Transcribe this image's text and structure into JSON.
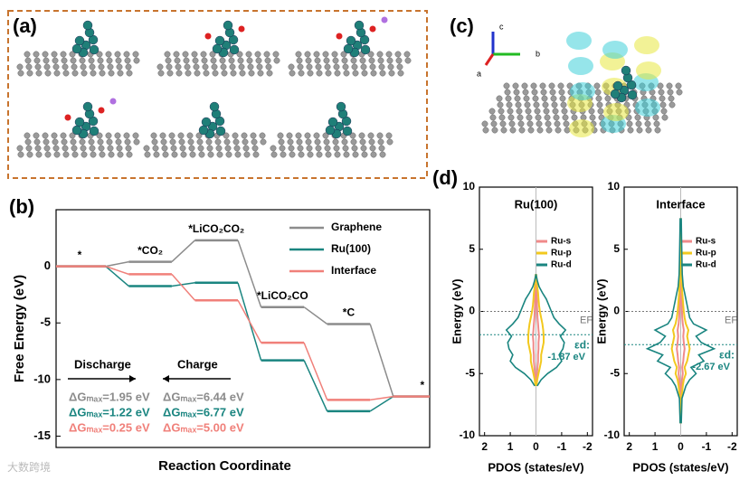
{
  "panel_labels": [
    "(a)",
    "(b)",
    "(c)",
    "(d)"
  ],
  "crystal_axes": [
    "c",
    "b",
    "a"
  ],
  "watermark": "大数跨境",
  "chart_data": [
    {
      "type": "energy_profile",
      "ylabel": "Free Energy (eV)",
      "xlabel": "Reaction Coordinate",
      "categories": [
        "*",
        "*CO₂",
        "*LiCO₂CO₂",
        "*LiCO₂CO",
        "*C",
        "*"
      ],
      "series": [
        {
          "name": "Graphene",
          "color": "#8c8c8c",
          "values": [
            0,
            0.4,
            2.3,
            -3.6,
            -5.1,
            -11.5
          ]
        },
        {
          "name": "Ru(100)",
          "color": "#1a8580",
          "values": [
            0,
            -1.75,
            -1.45,
            -8.3,
            -12.8,
            -11.5
          ]
        },
        {
          "name": "Interface",
          "color": "#f0807a",
          "values": [
            0,
            -0.7,
            -3.0,
            -6.75,
            -11.8,
            -11.5
          ]
        }
      ],
      "ylim": [
        -16,
        5
      ],
      "yticks": [
        0,
        -5,
        -10,
        -15
      ],
      "annotations": {
        "discharge": "Discharge",
        "charge": "Charge",
        "discharge_dg": [
          "ΔGₘₐₓ=1.95 eV",
          "ΔGₘₐₓ=1.22 eV",
          "ΔGₘₐₓ=0.25 eV"
        ],
        "charge_dg": [
          "ΔGₘₐₓ=6.44 eV",
          "ΔGₘₐₓ=6.77 eV",
          "ΔGₘₐₓ=5.00 eV"
        ]
      }
    },
    {
      "type": "pdos",
      "title": "Ru(100)",
      "xlabel": "PDOS (states/eV)",
      "ylabel": "Energy (eV)",
      "energy": [
        -6,
        -5.5,
        -5,
        -4.5,
        -4,
        -3.5,
        -3,
        -2.5,
        -2,
        -1.5,
        -1,
        -0.5,
        0,
        0.5,
        1,
        1.5,
        2,
        2.5,
        3
      ],
      "series": [
        {
          "name": "Ru-s",
          "color": "#f08a8a",
          "values": [
            0,
            0.02,
            0.04,
            0.06,
            0.08,
            0.08,
            0.1,
            0.1,
            0.12,
            0.1,
            0.08,
            0.06,
            0.05,
            0.04,
            0.03,
            0.02,
            0.02,
            0.01,
            0
          ]
        },
        {
          "name": "Ru-p",
          "color": "#f2c81e",
          "values": [
            0.02,
            0.05,
            0.1,
            0.15,
            0.2,
            0.2,
            0.25,
            0.3,
            0.3,
            0.28,
            0.25,
            0.2,
            0.15,
            0.12,
            0.1,
            0.08,
            0.05,
            0.03,
            0.01
          ]
        },
        {
          "name": "Ru-d",
          "color": "#1a8580",
          "values": [
            0.05,
            0.2,
            0.45,
            0.8,
            1.0,
            0.9,
            1.05,
            1.1,
            0.95,
            1.15,
            0.9,
            0.7,
            0.6,
            0.5,
            0.4,
            0.25,
            0.12,
            0.05,
            0
          ]
        }
      ],
      "xlim": [
        2.2,
        -2.2
      ],
      "xticks": [
        2,
        1,
        0,
        -1,
        -2
      ],
      "ylim": [
        -10,
        10
      ],
      "yticks": [
        10,
        5,
        0,
        -5,
        -10
      ],
      "fermi_label": "EF",
      "d_band_label": "εd:",
      "d_band_center": {
        "value": -1.87,
        "label": "-1.87 eV"
      }
    },
    {
      "type": "pdos",
      "title": "Interface",
      "xlabel": "PDOS (states/eV)",
      "ylabel": "Energy (eV)",
      "energy": [
        -9,
        -7,
        -6,
        -5.5,
        -5,
        -4.5,
        -4,
        -3.5,
        -3,
        -2.5,
        -2,
        -1.5,
        -1,
        -0.5,
        0,
        0.5,
        1,
        1.5,
        2,
        3,
        4,
        6,
        7.5
      ],
      "series": [
        {
          "name": "Ru-s",
          "color": "#f08a8a",
          "values": [
            0,
            0.01,
            0.03,
            0.05,
            0.08,
            0.06,
            0.1,
            0.12,
            0.15,
            0.12,
            0.1,
            0.12,
            0.08,
            0.06,
            0.05,
            0.04,
            0.03,
            0.02,
            0.02,
            0.01,
            0.01,
            0,
            0
          ]
        },
        {
          "name": "Ru-p",
          "color": "#f2c81e",
          "values": [
            0.01,
            0.03,
            0.08,
            0.12,
            0.2,
            0.15,
            0.25,
            0.3,
            0.35,
            0.3,
            0.25,
            0.3,
            0.2,
            0.15,
            0.12,
            0.1,
            0.08,
            0.06,
            0.05,
            0.03,
            0.02,
            0.01,
            0
          ]
        },
        {
          "name": "Ru-d",
          "color": "#1a8580",
          "values": [
            0.02,
            0.05,
            0.2,
            0.35,
            0.6,
            0.4,
            0.9,
            0.7,
            1.3,
            0.8,
            0.6,
            1.0,
            0.5,
            0.35,
            0.3,
            0.25,
            0.2,
            0.15,
            0.1,
            0.06,
            0.05,
            0.03,
            0.02
          ]
        }
      ],
      "xlim": [
        2.2,
        -2.2
      ],
      "xticks": [
        2,
        1,
        0,
        -1,
        -2
      ],
      "ylim": [
        -10,
        10
      ],
      "yticks": [
        10,
        5,
        0,
        -5,
        -10
      ],
      "fermi_label": "EF",
      "d_band_label": "εd:",
      "d_band_center": {
        "value": -2.67,
        "label": "-2.67 eV"
      }
    }
  ]
}
